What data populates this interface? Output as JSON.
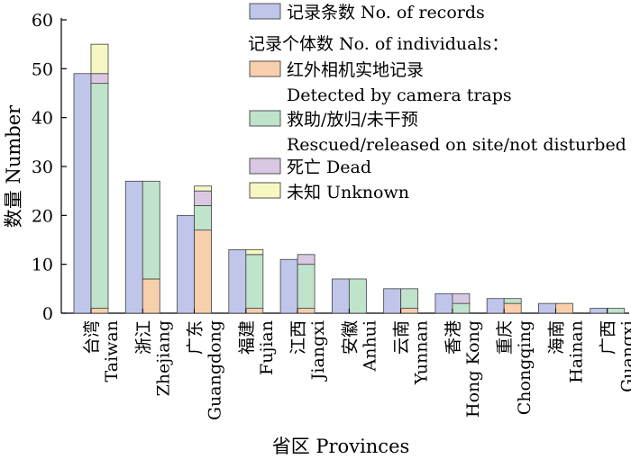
{
  "chart_data": {
    "type": "bar",
    "title": "",
    "xlabel": "省区 Provinces",
    "ylabel": "数量 Number",
    "ylim": [
      0,
      60
    ],
    "yticks": [
      0,
      10,
      20,
      30,
      40,
      50,
      60
    ],
    "grid": false,
    "legend_position": "top-right",
    "categories": [
      {
        "zh": "台湾",
        "en": "Taiwan"
      },
      {
        "zh": "浙江",
        "en": "Zhejiang"
      },
      {
        "zh": "广东",
        "en": "Guangdong"
      },
      {
        "zh": "福建",
        "en": "Fujian"
      },
      {
        "zh": "江西",
        "en": "Jiangxi"
      },
      {
        "zh": "安徽",
        "en": "Anhui"
      },
      {
        "zh": "云南",
        "en": "Yunnan"
      },
      {
        "zh": "香港",
        "en": "Hong Kong"
      },
      {
        "zh": "重庆",
        "en": "Chongqing"
      },
      {
        "zh": "海南",
        "en": "Hainan"
      },
      {
        "zh": "广西",
        "en": "Guangxi"
      }
    ],
    "records": {
      "name": "记录条数 No. of records",
      "color": "#c0c6ea",
      "values": [
        49,
        27,
        20,
        13,
        11,
        7,
        5,
        4,
        3,
        2,
        1
      ]
    },
    "individuals_header": "记录个体数 No. of individuals：",
    "series": [
      {
        "name_zh": "红外相机实地记录",
        "name_en": "Detected by camera traps",
        "color": "#f8cfad",
        "values": [
          1,
          7,
          17,
          1,
          1,
          0,
          1,
          0,
          2,
          2,
          0
        ]
      },
      {
        "name_zh": "救助/放归/未干预",
        "name_en": "Rescued/released on site/not disturbed",
        "color": "#bfe3cb",
        "values": [
          46,
          20,
          5,
          11,
          9,
          7,
          4,
          2,
          1,
          0,
          1
        ]
      },
      {
        "name_zh": "死亡 Dead",
        "name_en": "",
        "color": "#d9c8e2",
        "values": [
          2,
          0,
          3,
          0,
          2,
          0,
          0,
          2,
          0,
          0,
          0
        ]
      },
      {
        "name_zh": "未知 Unknown",
        "name_en": "",
        "color": "#f6f8c2",
        "values": [
          6,
          0,
          1,
          1,
          0,
          0,
          0,
          0,
          0,
          0,
          0
        ]
      }
    ]
  }
}
